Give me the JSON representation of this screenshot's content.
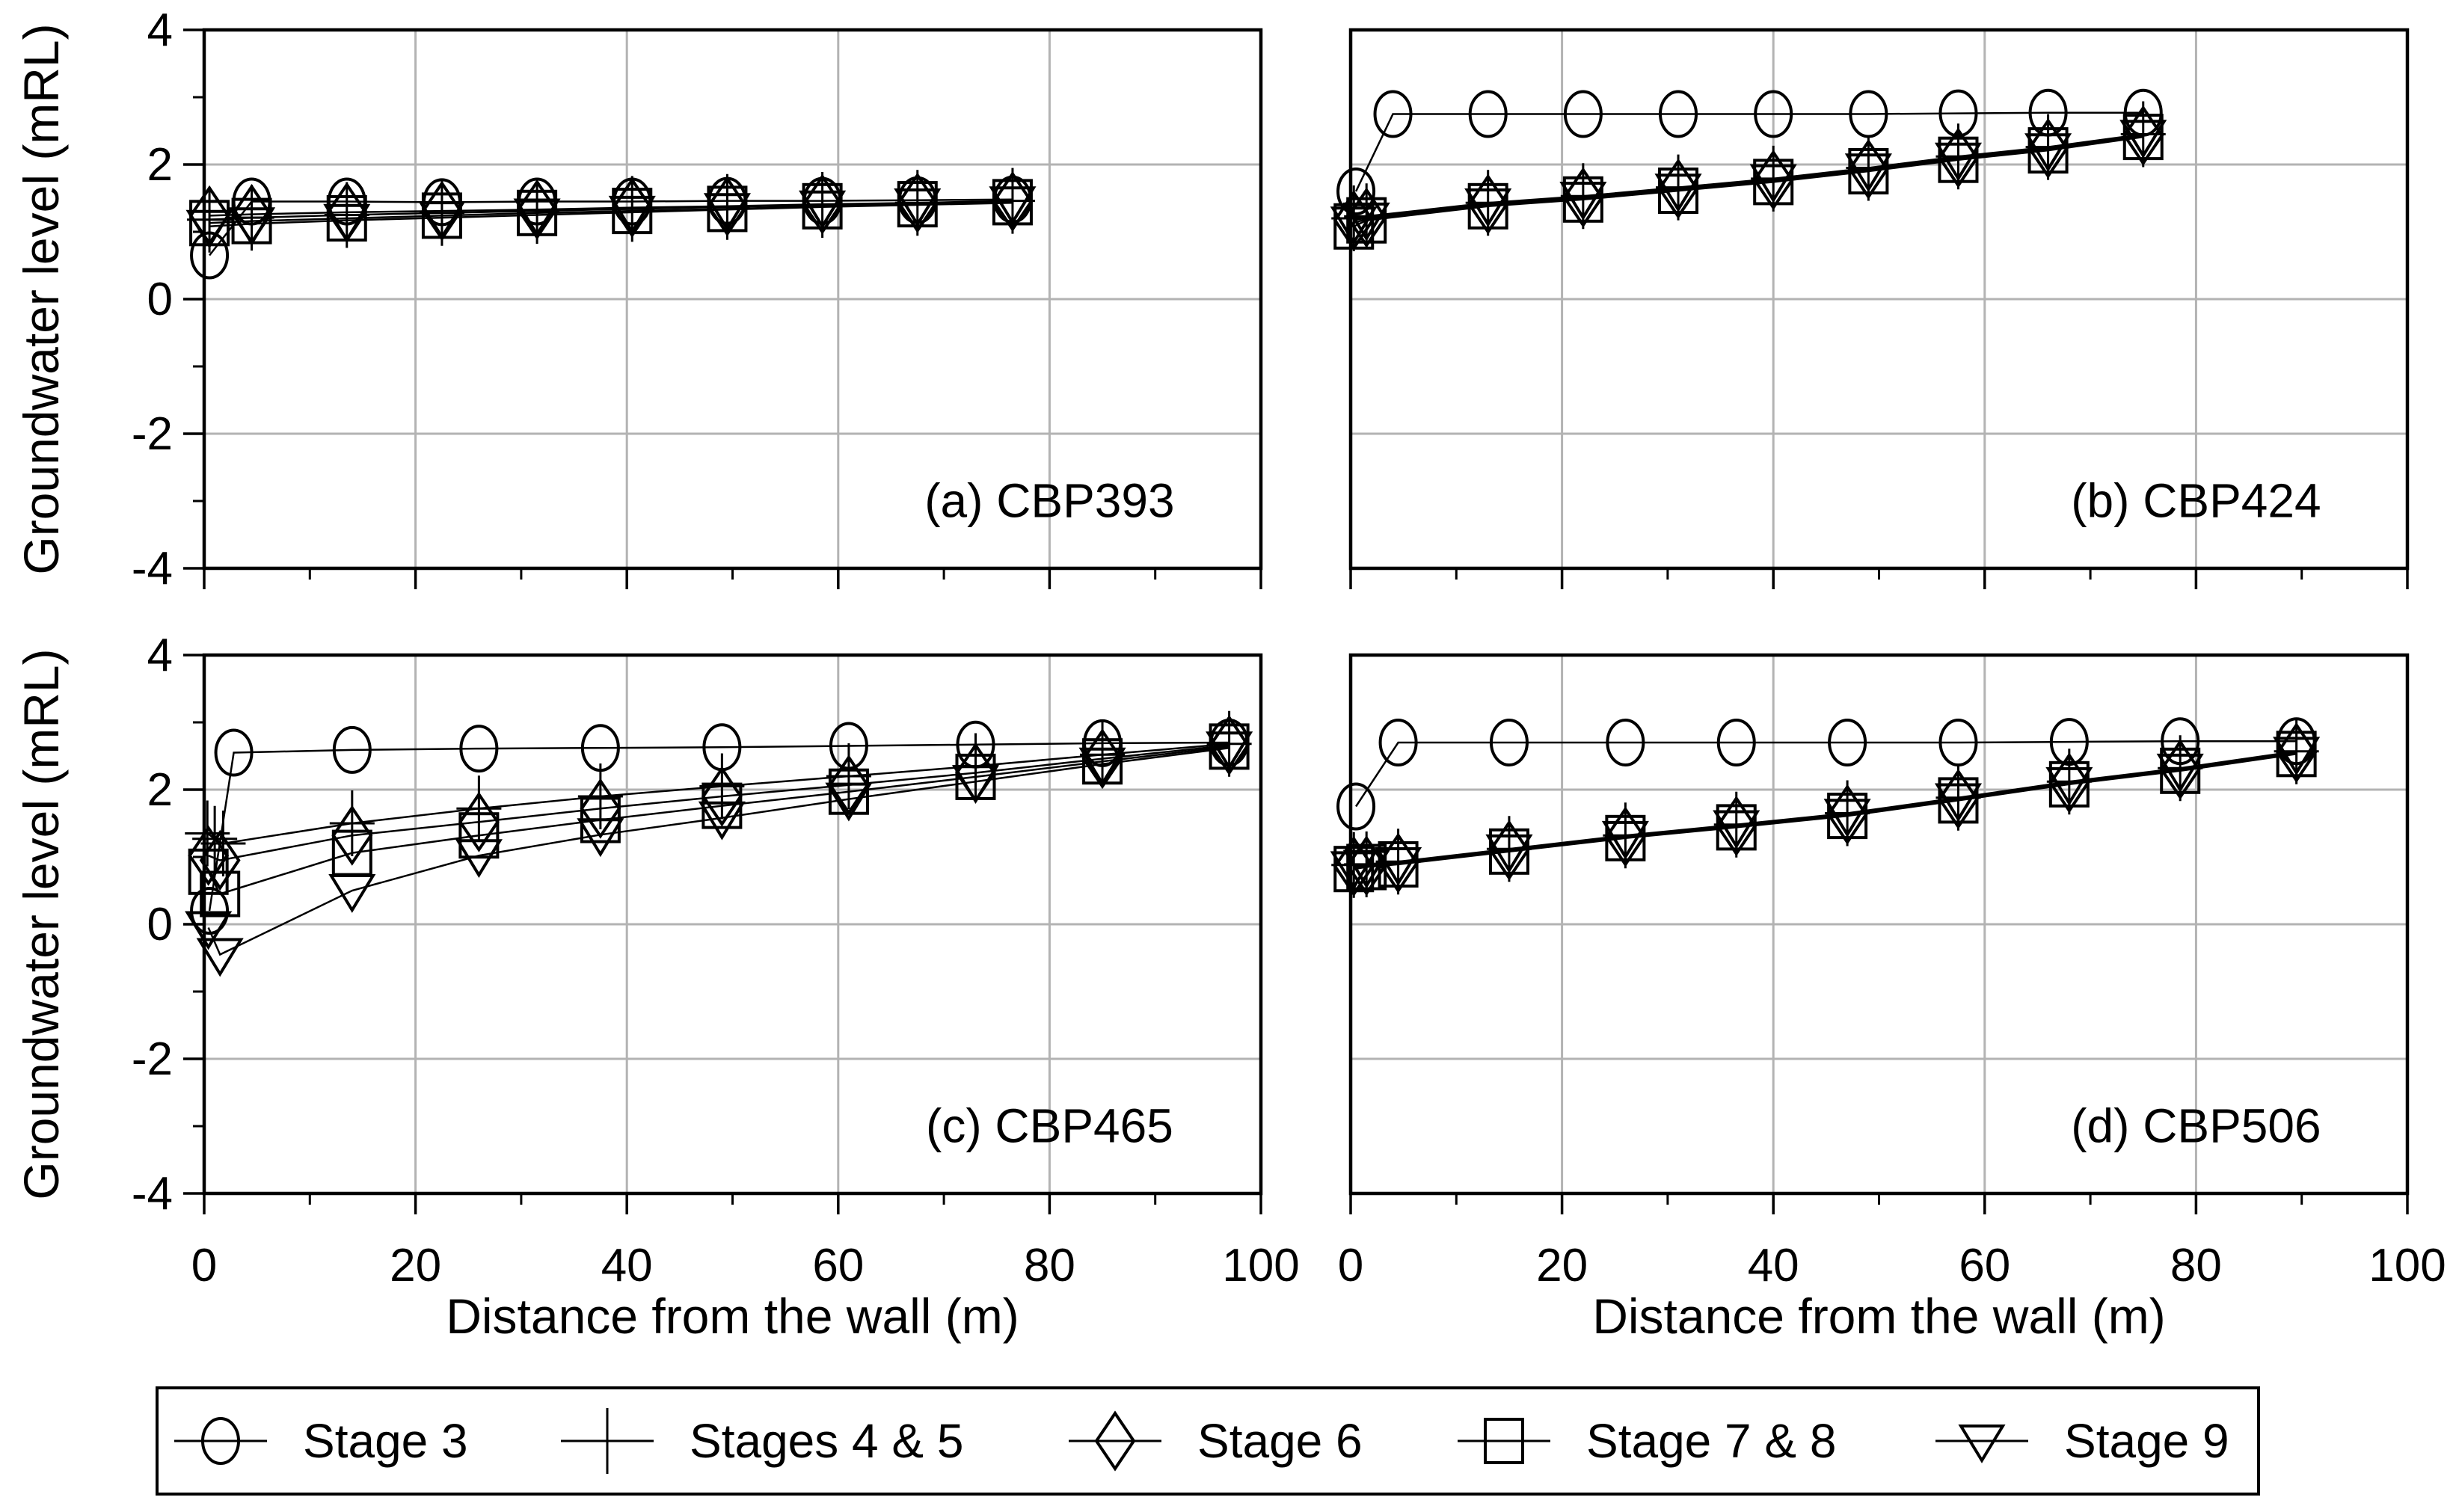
{
  "figure": {
    "background": "#ffffff",
    "line_color": "#000000",
    "grid_color": "#b3b3b3",
    "y_axis_label": "Groundwater level (mRL)",
    "x_axis_label": "Distance from the wall (m)"
  },
  "legend": {
    "position": "bottom",
    "items": [
      {
        "label": "Stage 3",
        "marker": "circle"
      },
      {
        "label": "Stages 4 & 5",
        "marker": "plus"
      },
      {
        "label": "Stage 6",
        "marker": "diamond"
      },
      {
        "label": "Stage 7 & 8",
        "marker": "square"
      },
      {
        "label": "Stage 9",
        "marker": "triangle-down"
      }
    ]
  },
  "chart_data": [
    {
      "type": "line",
      "panel": "a",
      "title": "(a) CBP393",
      "xlabel": "Distance from the wall (m)",
      "ylabel": "Groundwater level (mRL)",
      "xlim": [
        0,
        100
      ],
      "ylim": [
        -4,
        4
      ],
      "x_ticks": [
        0,
        20,
        40,
        60,
        80,
        100
      ],
      "x_minor_ticks": [
        10,
        30,
        50,
        70,
        90
      ],
      "y_ticks": [
        -4,
        -2,
        0,
        2,
        4
      ],
      "y_minor_ticks": [
        -3,
        -1,
        1,
        3
      ],
      "grid": true,
      "series": [
        {
          "name": "Stage 3",
          "marker": "circle",
          "x": [
            0.5,
            4.5,
            13.5,
            22.5,
            31.5,
            40.5,
            49.5,
            58.5,
            67.5,
            76.5
          ],
          "y": [
            0.65,
            1.45,
            1.45,
            1.44,
            1.45,
            1.45,
            1.46,
            1.46,
            1.47,
            1.48
          ]
        },
        {
          "name": "Stages 4 & 5",
          "marker": "plus",
          "x": [
            0.5,
            4.5,
            13.5,
            22.5,
            31.5,
            40.5,
            49.5,
            58.5,
            67.5,
            76.5
          ],
          "y": [
            1.18,
            1.21,
            1.25,
            1.28,
            1.31,
            1.34,
            1.37,
            1.4,
            1.43,
            1.46
          ]
        },
        {
          "name": "Stage 6",
          "marker": "diamond",
          "x": [
            0.5,
            4.5,
            13.5,
            22.5,
            31.5,
            40.5,
            49.5,
            58.5,
            67.5,
            76.5
          ],
          "y": [
            1.24,
            1.26,
            1.29,
            1.31,
            1.33,
            1.36,
            1.38,
            1.41,
            1.43,
            1.45
          ]
        },
        {
          "name": "Stage 7 & 8",
          "marker": "square",
          "x": [
            0.5,
            4.5,
            13.5,
            22.5,
            31.5,
            40.5,
            49.5,
            58.5,
            67.5,
            76.5
          ],
          "y": [
            1.13,
            1.16,
            1.2,
            1.24,
            1.28,
            1.31,
            1.34,
            1.38,
            1.41,
            1.44
          ]
        },
        {
          "name": "Stage 9",
          "marker": "triangle-down",
          "x": [
            0.5,
            4.5,
            13.5,
            22.5,
            31.5,
            40.5,
            49.5,
            58.5,
            67.5,
            76.5
          ],
          "y": [
            1.08,
            1.12,
            1.17,
            1.21,
            1.25,
            1.29,
            1.33,
            1.37,
            1.4,
            1.43
          ]
        }
      ]
    },
    {
      "type": "line",
      "panel": "b",
      "title": "(b) CBP424",
      "xlabel": "Distance from the wall (m)",
      "ylabel": "Groundwater level (mRL)",
      "xlim": [
        0,
        100
      ],
      "ylim": [
        -4,
        4
      ],
      "x_ticks": [
        0,
        20,
        40,
        60,
        80,
        100
      ],
      "x_minor_ticks": [
        10,
        30,
        50,
        70,
        90
      ],
      "y_ticks": [
        -4,
        -2,
        0,
        2,
        4
      ],
      "y_minor_ticks": [
        -3,
        -1,
        1,
        3
      ],
      "grid": true,
      "series": [
        {
          "name": "Stage 3",
          "marker": "circle",
          "x": [
            0.5,
            4,
            13,
            22,
            31,
            40,
            49,
            57.5,
            66,
            75
          ],
          "y": [
            1.6,
            2.75,
            2.75,
            2.75,
            2.75,
            2.75,
            2.75,
            2.76,
            2.77,
            2.77
          ]
        },
        {
          "name": "Stages 4 & 5",
          "marker": "plus",
          "x": [
            0.3,
            1.5,
            13,
            22,
            31,
            40,
            49,
            57.5,
            66,
            75
          ],
          "y": [
            1.2,
            1.23,
            1.43,
            1.53,
            1.66,
            1.79,
            1.95,
            2.12,
            2.26,
            2.45
          ]
        },
        {
          "name": "Stage 6",
          "marker": "diamond",
          "x": [
            0.3,
            1.5,
            13,
            22,
            31,
            40,
            49,
            57.5,
            66,
            75
          ],
          "y": [
            1.17,
            1.21,
            1.41,
            1.51,
            1.64,
            1.77,
            1.93,
            2.1,
            2.24,
            2.43
          ]
        },
        {
          "name": "Stage 7 & 8",
          "marker": "square",
          "x": [
            0.3,
            1.5,
            13,
            22,
            31,
            40,
            49,
            57.5,
            66,
            75
          ],
          "y": [
            1.08,
            1.17,
            1.38,
            1.48,
            1.61,
            1.74,
            1.9,
            2.07,
            2.21,
            2.41
          ]
        },
        {
          "name": "Stage 9",
          "marker": "triangle-down",
          "x": [
            0.3,
            1.5,
            13,
            22,
            31,
            40,
            49,
            57.5,
            66,
            75
          ],
          "y": [
            1.13,
            1.19,
            1.4,
            1.5,
            1.62,
            1.76,
            1.92,
            2.08,
            2.22,
            2.42
          ]
        }
      ]
    },
    {
      "type": "line",
      "panel": "c",
      "title": "(c) CBP465",
      "xlabel": "Distance from the wall (m)",
      "ylabel": "Groundwater level (mRL)",
      "xlim": [
        0,
        100
      ],
      "ylim": [
        -4,
        4
      ],
      "x_ticks": [
        0,
        20,
        40,
        60,
        80,
        100
      ],
      "x_minor_ticks": [
        10,
        30,
        50,
        70,
        90
      ],
      "y_ticks": [
        -4,
        -2,
        0,
        2,
        4
      ],
      "y_minor_ticks": [
        -3,
        -1,
        1,
        3
      ],
      "grid": true,
      "series": [
        {
          "name": "Stage 3",
          "marker": "circle",
          "x": [
            0.5,
            2.8,
            14,
            26,
            37.5,
            49,
            61,
            73,
            85,
            97
          ],
          "y": [
            0.2,
            2.55,
            2.59,
            2.61,
            2.62,
            2.63,
            2.65,
            2.67,
            2.69,
            2.7
          ]
        },
        {
          "name": "Stages 4 & 5",
          "marker": "plus",
          "x": [
            0.3,
            1.0,
            1.8,
            14,
            26,
            37.5,
            49,
            61,
            73,
            85,
            97
          ],
          "y": [
            1.35,
            1.27,
            1.2,
            1.5,
            1.72,
            1.9,
            2.05,
            2.2,
            2.35,
            2.52,
            2.68
          ]
        },
        {
          "name": "Stage 6",
          "marker": "diamond",
          "x": [
            0.4,
            1.5,
            14,
            26,
            37.5,
            49,
            61,
            73,
            85,
            97
          ],
          "y": [
            1.02,
            0.95,
            1.32,
            1.52,
            1.72,
            1.9,
            2.07,
            2.25,
            2.46,
            2.66
          ]
        },
        {
          "name": "Stage 7 & 8",
          "marker": "square",
          "x": [
            0.4,
            1.5,
            14,
            26,
            37.5,
            49,
            61,
            73,
            85,
            97
          ],
          "y": [
            0.78,
            0.45,
            1.06,
            1.32,
            1.55,
            1.76,
            1.97,
            2.19,
            2.42,
            2.64
          ]
        },
        {
          "name": "Stage 9",
          "marker": "triangle-down",
          "x": [
            0.4,
            1.5,
            14,
            26,
            37.5,
            49,
            61,
            73,
            85,
            97
          ],
          "y": [
            -0.05,
            -0.45,
            0.5,
            1.02,
            1.33,
            1.58,
            1.86,
            2.12,
            2.38,
            2.62
          ]
        }
      ]
    },
    {
      "type": "line",
      "panel": "d",
      "title": "(d) CBP506",
      "xlabel": "Distance from the wall (m)",
      "ylabel": "Groundwater level (mRL)",
      "xlim": [
        0,
        100
      ],
      "ylim": [
        -4,
        4
      ],
      "x_ticks": [
        0,
        20,
        40,
        60,
        80,
        100
      ],
      "x_minor_ticks": [
        10,
        30,
        50,
        70,
        90
      ],
      "y_ticks": [
        -4,
        -2,
        0,
        2,
        4
      ],
      "y_minor_ticks": [
        -3,
        -1,
        1,
        3
      ],
      "grid": true,
      "series": [
        {
          "name": "Stage 3",
          "marker": "circle",
          "x": [
            0.5,
            4.5,
            15,
            26,
            36.5,
            47,
            57.5,
            68,
            78.5,
            89.5
          ],
          "y": [
            1.75,
            2.7,
            2.7,
            2.7,
            2.7,
            2.7,
            2.7,
            2.71,
            2.72,
            2.72
          ]
        },
        {
          "name": "Stages 4 & 5",
          "marker": "plus",
          "x": [
            0.3,
            1.5,
            4.5,
            15,
            26,
            36.5,
            47,
            57.5,
            68,
            78.5,
            89.5
          ],
          "y": [
            0.88,
            0.89,
            0.93,
            1.12,
            1.32,
            1.48,
            1.65,
            1.88,
            2.12,
            2.32,
            2.57
          ]
        },
        {
          "name": "Stage 6",
          "marker": "diamond",
          "x": [
            0.3,
            1.5,
            4.5,
            15,
            26,
            36.5,
            47,
            57.5,
            68,
            78.5,
            89.5
          ],
          "y": [
            0.86,
            0.87,
            0.91,
            1.1,
            1.3,
            1.46,
            1.63,
            1.86,
            2.1,
            2.3,
            2.55
          ]
        },
        {
          "name": "Stage 7 & 8",
          "marker": "square",
          "x": [
            0.3,
            1.5,
            4.5,
            15,
            26,
            36.5,
            47,
            57.5,
            68,
            78.5,
            89.5
          ],
          "y": [
            0.82,
            0.85,
            0.89,
            1.08,
            1.28,
            1.44,
            1.61,
            1.84,
            2.08,
            2.28,
            2.53
          ]
        },
        {
          "name": "Stage 9",
          "marker": "triangle-down",
          "x": [
            0.3,
            1.5,
            4.5,
            15,
            26,
            36.5,
            47,
            57.5,
            68,
            78.5,
            89.5
          ],
          "y": [
            0.84,
            0.86,
            0.9,
            1.09,
            1.29,
            1.45,
            1.62,
            1.85,
            2.09,
            2.29,
            2.54
          ]
        }
      ]
    }
  ]
}
